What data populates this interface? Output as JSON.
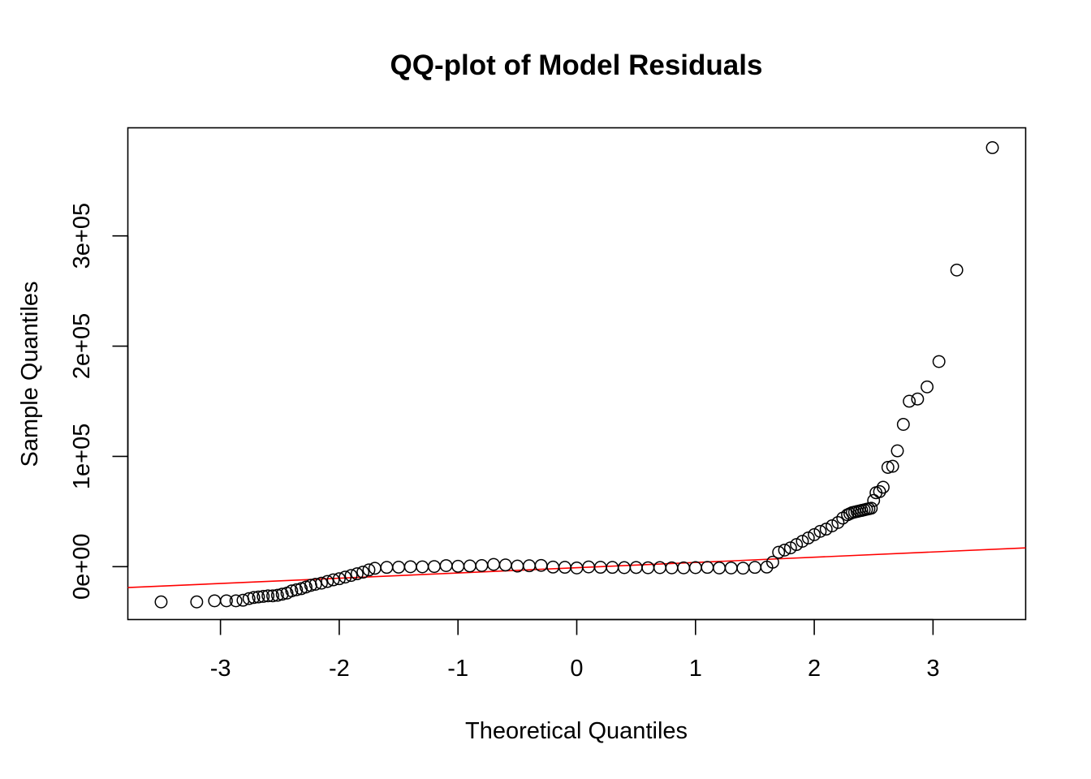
{
  "chart_data": {
    "type": "scatter",
    "title": "QQ-plot of Model Residuals",
    "xlabel": "Theoretical Quantiles",
    "ylabel": "Sample Quantiles",
    "xlim": [
      -3.78,
      3.78
    ],
    "ylim": [
      -48000,
      398000
    ],
    "x_ticks": [
      -3,
      -2,
      -1,
      0,
      1,
      2,
      3
    ],
    "x_tick_labels": [
      "-3",
      "-2",
      "-1",
      "0",
      "1",
      "2",
      "3"
    ],
    "y_ticks": [
      0,
      100000,
      200000,
      300000
    ],
    "y_tick_labels": [
      "0e+00",
      "1e+05",
      "2e+05",
      "3e+05"
    ],
    "grid": false,
    "legend": "none",
    "point_color": "#000000",
    "line_color": "#ff0000",
    "reference_line": {
      "x": [
        -3.78,
        3.78
      ],
      "y": [
        -19000,
        17000
      ]
    },
    "x": [
      -3.5,
      -3.2,
      -3.05,
      -2.95,
      -2.87,
      -2.81,
      -2.76,
      -2.72,
      -2.68,
      -2.64,
      -2.6,
      -2.56,
      -2.52,
      -2.48,
      -2.44,
      -2.4,
      -2.36,
      -2.32,
      -2.28,
      -2.24,
      -2.2,
      -2.15,
      -2.1,
      -2.05,
      -2.0,
      -1.95,
      -1.9,
      -1.85,
      -1.8,
      -1.75,
      -1.7,
      -1.6,
      -1.5,
      -1.4,
      -1.3,
      -1.2,
      -1.1,
      -1.0,
      -0.9,
      -0.8,
      -0.7,
      -0.6,
      -0.5,
      -0.4,
      -0.3,
      -0.2,
      -0.1,
      0.0,
      0.1,
      0.2,
      0.3,
      0.4,
      0.5,
      0.6,
      0.7,
      0.8,
      0.9,
      1.0,
      1.1,
      1.2,
      1.3,
      1.4,
      1.5,
      1.6,
      1.65,
      1.7,
      1.75,
      1.8,
      1.85,
      1.9,
      1.95,
      2.0,
      2.05,
      2.1,
      2.15,
      2.2,
      2.24,
      2.28,
      2.3,
      2.32,
      2.34,
      2.36,
      2.38,
      2.4,
      2.42,
      2.44,
      2.46,
      2.48,
      2.5,
      2.52,
      2.55,
      2.58,
      2.62,
      2.66,
      2.7,
      2.75,
      2.8,
      2.87,
      2.95,
      3.05,
      3.2,
      3.5
    ],
    "y": [
      -32000,
      -32000,
      -31000,
      -31000,
      -31000,
      -30500,
      -29000,
      -28000,
      -27500,
      -27000,
      -26500,
      -26500,
      -26000,
      -25000,
      -24000,
      -22000,
      -21000,
      -20000,
      -18500,
      -17000,
      -16000,
      -15000,
      -13500,
      -12000,
      -11000,
      -9500,
      -8000,
      -6500,
      -5000,
      -3000,
      -1500,
      -700,
      -500,
      -100,
      -200,
      100,
      900,
      300,
      600,
      1000,
      2000,
      1500,
      500,
      800,
      1100,
      -400,
      -600,
      -1200,
      -300,
      -600,
      -700,
      -900,
      -800,
      -1000,
      -900,
      -1100,
      -1100,
      -900,
      -700,
      -1200,
      -1200,
      -1400,
      -700,
      -400,
      4000,
      13000,
      15000,
      17000,
      20000,
      23000,
      26000,
      29000,
      32000,
      34000,
      37000,
      40000,
      44000,
      47000,
      48000,
      49000,
      49500,
      50000,
      50500,
      51000,
      51500,
      52000,
      52500,
      53000,
      60000,
      67000,
      68000,
      72000,
      90000,
      91000,
      105000,
      129000,
      150000,
      152000,
      163000,
      186000,
      269000,
      380000
    ]
  }
}
